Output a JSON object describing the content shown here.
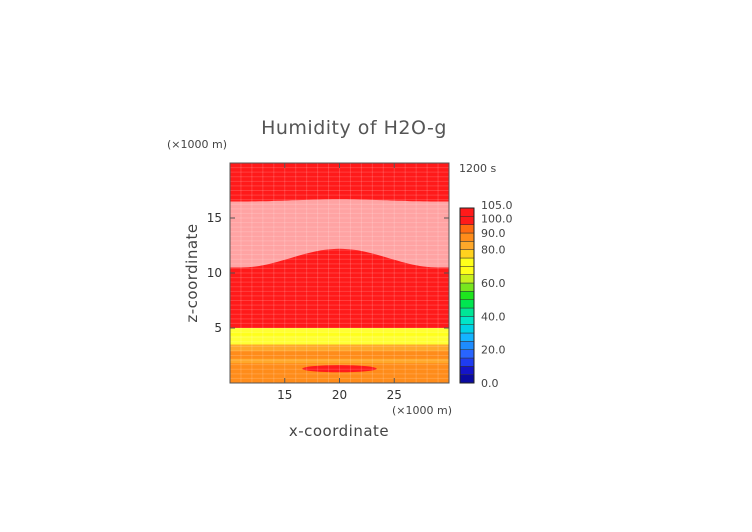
{
  "chart_data": {
    "type": "heatmap",
    "title": "Humidity of H2O-g",
    "time_label": "1200 s",
    "xlabel": "x-coordinate",
    "ylabel": "z-coordinate",
    "x_unit": "(×1000 m)",
    "z_unit": "(×1000 m)",
    "xlim": [
      10.0,
      30.0
    ],
    "ylim": [
      0.0,
      20.0
    ],
    "x_ticks": [
      "15",
      "20",
      "25"
    ],
    "z_ticks": [
      "5",
      "10",
      "15"
    ],
    "x_tick_values": [
      15,
      20,
      25
    ],
    "z_tick_values": [
      5,
      10,
      15
    ],
    "color_levels": [
      0.0,
      20.0,
      40.0,
      60.0,
      80.0,
      90.0,
      100.0,
      105.0
    ],
    "colorbar_labels": [
      "0.0",
      "20.0",
      "40.0",
      "60.0",
      "80.0",
      "90.0",
      "100.0",
      "105.0"
    ],
    "regions": [
      {
        "name": "upper saturated layer",
        "z_range": [
          16.5,
          20.0
        ],
        "humidity": 100
      },
      {
        "name": "mid-level above-saturation band",
        "z_range": [
          10.5,
          16.5
        ],
        "humidity": 105,
        "top_bulge_peak": 16.7,
        "bottom_bulge_peak": 12.2,
        "bulge_center_x": 20.0
      },
      {
        "name": "middle saturated layer",
        "z_range": [
          5.0,
          10.5
        ],
        "humidity": 100
      },
      {
        "name": "yellow band",
        "z_range": [
          3.5,
          5.0
        ],
        "humidity": 80
      },
      {
        "name": "orange band",
        "z_range": [
          0.0,
          3.5
        ],
        "humidity": 90
      },
      {
        "name": "near-surface saturated patch",
        "x_range": [
          16.0,
          24.0
        ],
        "z_center": 1.3,
        "humidity": 100
      }
    ],
    "colors": {
      "saturated": "#ff1a1a",
      "above_saturation": "#ffa3a3",
      "level_90": "#ff8c1a",
      "level_80": "#ffa82a",
      "level_70": "#ffff1a",
      "yellow_band": "#ffff33"
    },
    "colorbar_colors": [
      "#0a0aa0",
      "#1414c8",
      "#1e3cf0",
      "#2864ff",
      "#1e8cff",
      "#14b4ff",
      "#00d2e6",
      "#00e6c8",
      "#00e696",
      "#00e650",
      "#1ee61e",
      "#78e61e",
      "#c8f01e",
      "#ffff1a",
      "#ffff1a",
      "#ffd21e",
      "#ffa82a",
      "#ff8c1a",
      "#ff6a10",
      "#ff1a1a",
      "#ff1a1a",
      "#ffffff"
    ]
  }
}
